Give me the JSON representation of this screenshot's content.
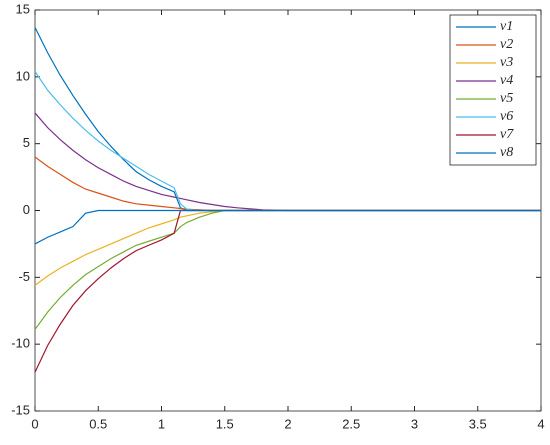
{
  "chart_data": {
    "type": "line",
    "x": [
      0,
      0.1,
      0.2,
      0.3,
      0.4,
      0.5,
      0.6,
      0.7,
      0.8,
      0.9,
      1.0,
      1.1,
      1.15,
      1.2,
      1.3,
      1.4,
      1.5,
      1.6,
      1.8,
      2,
      3,
      4
    ],
    "series": [
      {
        "name": "v1",
        "color": "#0072bd",
        "values": [
          13.7,
          11.8,
          10.1,
          8.6,
          7.2,
          5.9,
          4.8,
          3.8,
          2.9,
          2.3,
          1.8,
          1.4,
          0.2,
          0,
          0,
          0,
          0,
          0,
          0,
          0,
          0,
          0
        ]
      },
      {
        "name": "v2",
        "color": "#d95319",
        "values": [
          4.0,
          3.3,
          2.7,
          2.1,
          1.6,
          1.3,
          1.0,
          0.7,
          0.5,
          0.4,
          0.3,
          0.2,
          0.15,
          0.1,
          0.05,
          0,
          0,
          0,
          0,
          0,
          0,
          0
        ]
      },
      {
        "name": "v3",
        "color": "#edb120",
        "values": [
          -5.6,
          -4.9,
          -4.3,
          -3.8,
          -3.3,
          -2.9,
          -2.5,
          -2.1,
          -1.7,
          -1.3,
          -1.0,
          -0.7,
          -0.5,
          -0.4,
          -0.2,
          -0.1,
          0,
          0,
          0,
          0,
          0,
          0
        ]
      },
      {
        "name": "v4",
        "color": "#7e2f8e",
        "values": [
          7.3,
          6.2,
          5.3,
          4.5,
          3.8,
          3.2,
          2.7,
          2.2,
          1.8,
          1.5,
          1.2,
          1.0,
          0.9,
          0.8,
          0.6,
          0.45,
          0.3,
          0.2,
          0.05,
          0,
          0,
          0
        ]
      },
      {
        "name": "v5",
        "color": "#77ac30",
        "values": [
          -8.9,
          -7.6,
          -6.5,
          -5.6,
          -4.8,
          -4.2,
          -3.6,
          -3.1,
          -2.6,
          -2.3,
          -2.0,
          -1.7,
          -1.2,
          -0.9,
          -0.5,
          -0.2,
          0,
          0,
          0,
          0,
          0,
          0
        ]
      },
      {
        "name": "v6",
        "color": "#4dbeee",
        "values": [
          10.4,
          9.0,
          7.9,
          6.9,
          6.0,
          5.2,
          4.5,
          3.9,
          3.3,
          2.7,
          2.2,
          1.7,
          0.5,
          0.1,
          0,
          0,
          0,
          0,
          0,
          0,
          0,
          0
        ]
      },
      {
        "name": "v7",
        "color": "#a2142f",
        "values": [
          -12.1,
          -10.1,
          -8.5,
          -7.1,
          -6.0,
          -5.1,
          -4.3,
          -3.6,
          -3.0,
          -2.6,
          -2.2,
          -1.7,
          0,
          0,
          0,
          0,
          0,
          0,
          0,
          0,
          0,
          0
        ]
      },
      {
        "name": "v8",
        "color": "#0072bd",
        "values": [
          -2.5,
          -2.0,
          -1.6,
          -1.2,
          -0.2,
          0,
          0,
          0,
          0,
          0,
          0,
          0,
          0,
          0,
          0,
          0,
          0,
          0,
          0,
          0,
          0,
          0
        ]
      }
    ],
    "xlim": [
      0,
      4
    ],
    "xticks": [
      0,
      0.5,
      1,
      1.5,
      2,
      2.5,
      3,
      3.5,
      4
    ],
    "ylim": [
      -15,
      15
    ],
    "yticks": [
      -15,
      -10,
      -5,
      0,
      5,
      10,
      15
    ],
    "legend": "top-right"
  }
}
